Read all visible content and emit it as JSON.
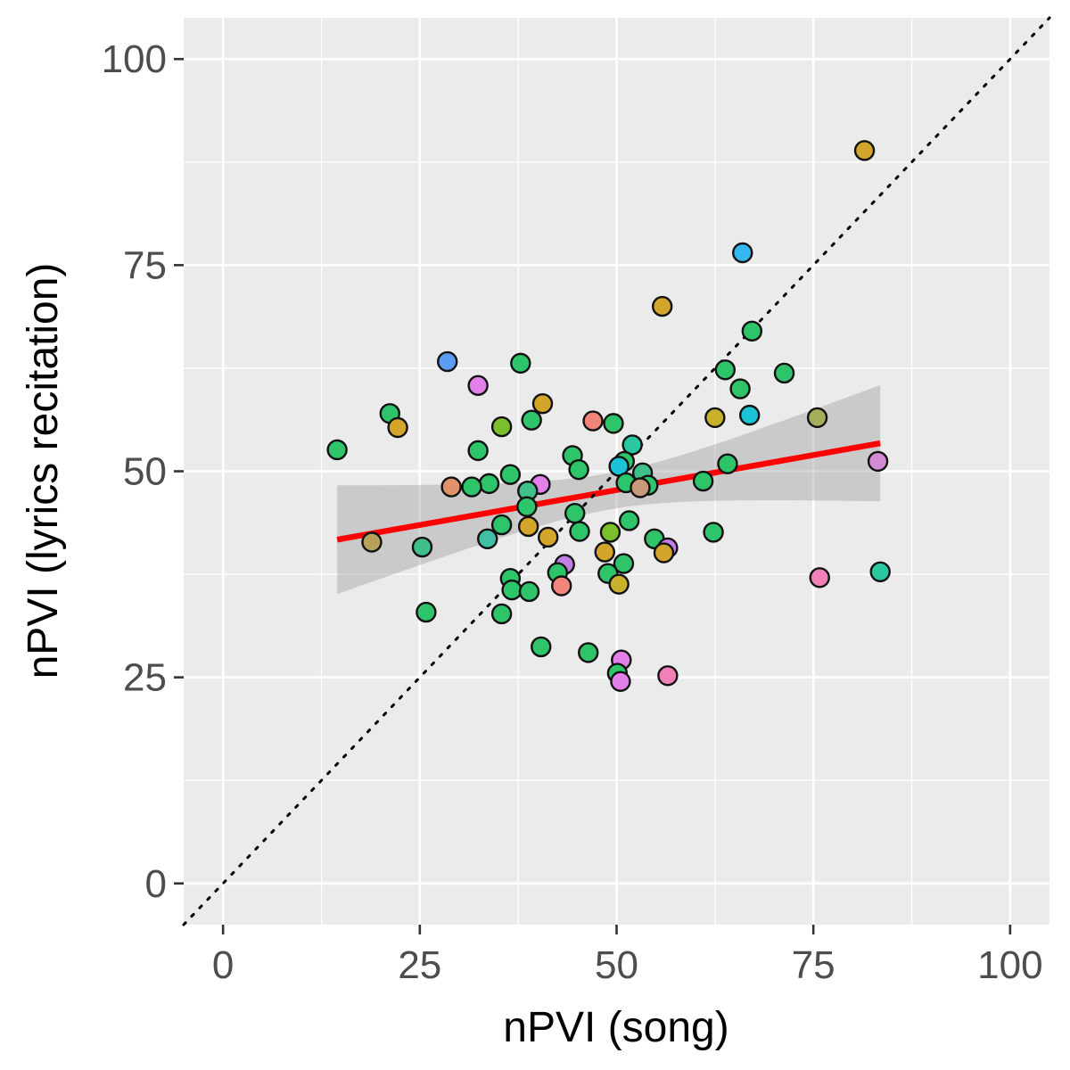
{
  "chart_data": {
    "type": "scatter",
    "title": "",
    "xlabel": "nPVI (song)",
    "ylabel": "nPVI (lyrics recitation)",
    "xlim": [
      -5,
      105
    ],
    "ylim": [
      -5,
      105
    ],
    "xticks": [
      0,
      25,
      50,
      75,
      100
    ],
    "yticks": [
      0,
      25,
      50,
      75,
      100
    ],
    "grid": true,
    "legend": "none",
    "identity_line": {
      "slope": 1,
      "intercept": 0,
      "style": "dotted",
      "color": "#000000"
    },
    "fit": {
      "x_range": [
        14.5,
        83.5
      ],
      "y_start": 41.7,
      "y_end": 53.4,
      "color": "#ff0000",
      "ci_lower": [
        35.0,
        46.3
      ],
      "ci_upper": [
        48.2,
        60.4
      ]
    },
    "points": [
      {
        "x": 81.5,
        "y": 88.9,
        "color": "#d4a52b"
      },
      {
        "x": 66.0,
        "y": 76.5,
        "color": "#35b7f0"
      },
      {
        "x": 55.8,
        "y": 70.0,
        "color": "#d4a52b"
      },
      {
        "x": 67.2,
        "y": 67.0,
        "color": "#2dc46a"
      },
      {
        "x": 28.5,
        "y": 63.3,
        "color": "#5b9cf5"
      },
      {
        "x": 37.8,
        "y": 63.1,
        "color": "#2dc46a"
      },
      {
        "x": 63.8,
        "y": 62.3,
        "color": "#2dc46a"
      },
      {
        "x": 71.3,
        "y": 61.9,
        "color": "#2dc46a"
      },
      {
        "x": 32.4,
        "y": 60.4,
        "color": "#e27fe8"
      },
      {
        "x": 65.7,
        "y": 60.0,
        "color": "#2dc46a"
      },
      {
        "x": 40.6,
        "y": 58.2,
        "color": "#d4a52b"
      },
      {
        "x": 21.2,
        "y": 57.0,
        "color": "#2dc46a"
      },
      {
        "x": 66.9,
        "y": 56.8,
        "color": "#1cc3d6"
      },
      {
        "x": 62.5,
        "y": 56.5,
        "color": "#c8b12a"
      },
      {
        "x": 75.5,
        "y": 56.5,
        "color": "#a3ad5a"
      },
      {
        "x": 39.2,
        "y": 56.2,
        "color": "#2dc46a"
      },
      {
        "x": 47.0,
        "y": 56.1,
        "color": "#f2857a"
      },
      {
        "x": 49.6,
        "y": 55.8,
        "color": "#2dc46a"
      },
      {
        "x": 35.4,
        "y": 55.4,
        "color": "#7bbf2a"
      },
      {
        "x": 22.2,
        "y": 55.3,
        "color": "#d4a52b"
      },
      {
        "x": 52.0,
        "y": 53.2,
        "color": "#2ac7a0"
      },
      {
        "x": 14.5,
        "y": 52.6,
        "color": "#2dc46a"
      },
      {
        "x": 32.4,
        "y": 52.5,
        "color": "#2dc46a"
      },
      {
        "x": 44.4,
        "y": 51.9,
        "color": "#2dc46a"
      },
      {
        "x": 51.0,
        "y": 51.2,
        "color": "#2dc46a"
      },
      {
        "x": 83.2,
        "y": 51.2,
        "color": "#d48bd6"
      },
      {
        "x": 64.1,
        "y": 50.9,
        "color": "#2dc46a"
      },
      {
        "x": 50.3,
        "y": 50.6,
        "color": "#1cc3d6"
      },
      {
        "x": 45.2,
        "y": 50.2,
        "color": "#2dc46a"
      },
      {
        "x": 53.3,
        "y": 49.8,
        "color": "#3fbf8a"
      },
      {
        "x": 36.5,
        "y": 49.6,
        "color": "#2dc46a"
      },
      {
        "x": 61.0,
        "y": 48.8,
        "color": "#2dc46a"
      },
      {
        "x": 51.2,
        "y": 48.6,
        "color": "#2dc46a"
      },
      {
        "x": 33.8,
        "y": 48.5,
        "color": "#2dc46a"
      },
      {
        "x": 40.3,
        "y": 48.4,
        "color": "#e27fe8"
      },
      {
        "x": 54.0,
        "y": 48.3,
        "color": "#2dc46a"
      },
      {
        "x": 29.0,
        "y": 48.1,
        "color": "#e0936a"
      },
      {
        "x": 31.6,
        "y": 48.1,
        "color": "#2dc46a"
      },
      {
        "x": 53.0,
        "y": 48.0,
        "color": "#c89a7a"
      },
      {
        "x": 38.7,
        "y": 47.6,
        "color": "#3fbf8a"
      },
      {
        "x": 38.6,
        "y": 45.7,
        "color": "#2dc46a"
      },
      {
        "x": 44.7,
        "y": 44.9,
        "color": "#2dc46a"
      },
      {
        "x": 51.6,
        "y": 44.0,
        "color": "#2dc46a"
      },
      {
        "x": 35.4,
        "y": 43.5,
        "color": "#2dc46a"
      },
      {
        "x": 38.8,
        "y": 43.3,
        "color": "#d4a52b"
      },
      {
        "x": 45.3,
        "y": 42.7,
        "color": "#2dc46a"
      },
      {
        "x": 49.2,
        "y": 42.6,
        "color": "#7bbf2a"
      },
      {
        "x": 62.3,
        "y": 42.6,
        "color": "#2dc46a"
      },
      {
        "x": 41.3,
        "y": 42.0,
        "color": "#d4a52b"
      },
      {
        "x": 54.8,
        "y": 41.8,
        "color": "#2dc46a"
      },
      {
        "x": 33.6,
        "y": 41.8,
        "color": "#3fbfa5"
      },
      {
        "x": 18.9,
        "y": 41.4,
        "color": "#b7a05a"
      },
      {
        "x": 25.3,
        "y": 40.8,
        "color": "#3fbf8a"
      },
      {
        "x": 56.5,
        "y": 40.7,
        "color": "#c27fe8"
      },
      {
        "x": 48.5,
        "y": 40.2,
        "color": "#d4a52b"
      },
      {
        "x": 56.0,
        "y": 40.1,
        "color": "#d4a52b"
      },
      {
        "x": 50.9,
        "y": 38.8,
        "color": "#2dc46a"
      },
      {
        "x": 43.4,
        "y": 38.7,
        "color": "#c27fe8"
      },
      {
        "x": 83.5,
        "y": 37.8,
        "color": "#2ac7a0"
      },
      {
        "x": 42.5,
        "y": 37.7,
        "color": "#2dc46a"
      },
      {
        "x": 48.9,
        "y": 37.6,
        "color": "#2dc46a"
      },
      {
        "x": 75.8,
        "y": 37.1,
        "color": "#f27fb8"
      },
      {
        "x": 36.5,
        "y": 37.0,
        "color": "#2dc46a"
      },
      {
        "x": 50.3,
        "y": 36.3,
        "color": "#c8b12a"
      },
      {
        "x": 43.0,
        "y": 36.1,
        "color": "#f2857a"
      },
      {
        "x": 36.7,
        "y": 35.6,
        "color": "#2dc46a"
      },
      {
        "x": 38.9,
        "y": 35.4,
        "color": "#2dc46a"
      },
      {
        "x": 25.8,
        "y": 32.9,
        "color": "#2dc46a"
      },
      {
        "x": 35.4,
        "y": 32.7,
        "color": "#2dc46a"
      },
      {
        "x": 40.4,
        "y": 28.7,
        "color": "#2dc46a"
      },
      {
        "x": 46.4,
        "y": 28.0,
        "color": "#2dc46a"
      },
      {
        "x": 50.6,
        "y": 27.1,
        "color": "#e27fe8"
      },
      {
        "x": 50.1,
        "y": 25.5,
        "color": "#2dc46a"
      },
      {
        "x": 56.5,
        "y": 25.2,
        "color": "#f27fb8"
      },
      {
        "x": 50.5,
        "y": 24.5,
        "color": "#e27fe8"
      }
    ]
  }
}
